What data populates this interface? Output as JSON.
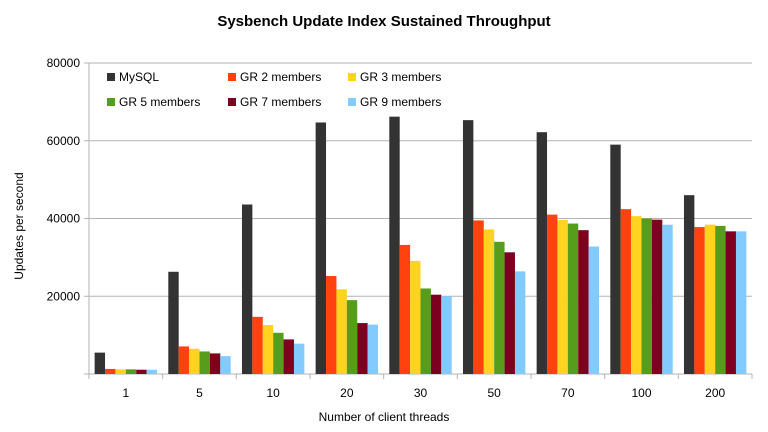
{
  "chart_data": {
    "type": "bar",
    "title": "Sysbench Update Index Sustained Throughput",
    "xlabel": "Number of client threads",
    "ylabel": "Updates per second",
    "ylim": [
      0,
      80000
    ],
    "yticks": [
      0,
      20000,
      40000,
      60000,
      80000
    ],
    "ytick_labels": [
      "",
      "20000",
      "40000",
      "60000",
      "80000"
    ],
    "grid": "horizontal",
    "legend_position": "top-left",
    "categories": [
      "1",
      "5",
      "10",
      "20",
      "30",
      "50",
      "70",
      "100",
      "200"
    ],
    "series": [
      {
        "name": "MySQL",
        "color": "#333333",
        "values": [
          5500,
          26300,
          43600,
          64700,
          66200,
          65300,
          62200,
          59000,
          46000
        ]
      },
      {
        "name": "GR 2 members",
        "color": "#ff420e",
        "values": [
          1300,
          7100,
          14700,
          25200,
          33200,
          39500,
          41000,
          42400,
          37800
        ]
      },
      {
        "name": "GR 3 members",
        "color": "#ffd320",
        "values": [
          1200,
          6500,
          12600,
          21800,
          29100,
          37200,
          39600,
          40600,
          38400
        ]
      },
      {
        "name": "GR 5 members",
        "color": "#579d1c",
        "values": [
          1200,
          5800,
          10600,
          19000,
          22000,
          34000,
          38700,
          40000,
          38100
        ]
      },
      {
        "name": "GR 7 members",
        "color": "#7e0021",
        "values": [
          1100,
          5300,
          8900,
          13100,
          20400,
          31300,
          37000,
          39700,
          36700
        ]
      },
      {
        "name": "GR 9 members",
        "color": "#83caff",
        "values": [
          1100,
          4600,
          7800,
          12700,
          20000,
          26400,
          32800,
          38400,
          36700
        ]
      }
    ]
  }
}
